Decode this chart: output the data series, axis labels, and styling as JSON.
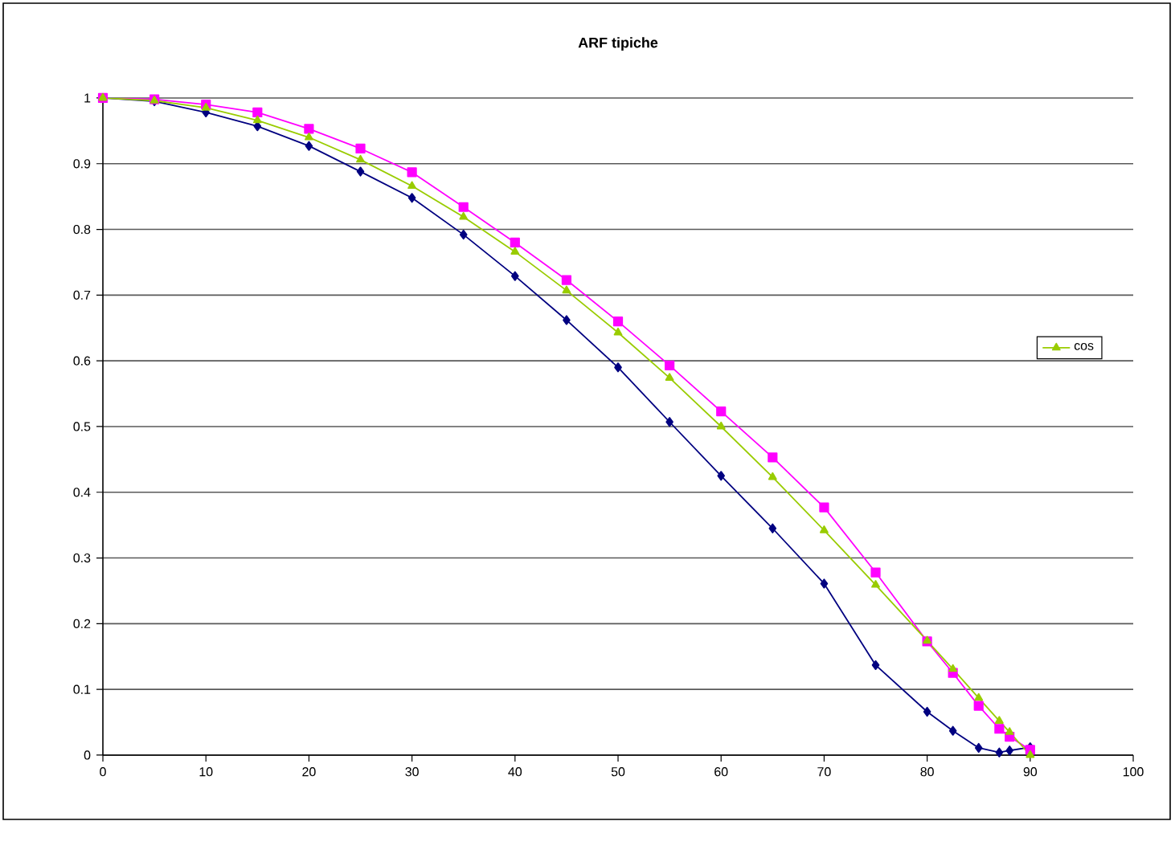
{
  "chart_data": {
    "type": "line",
    "title": "ARF tipiche",
    "xlim": [
      0,
      100
    ],
    "xticks": [
      0,
      10,
      20,
      30,
      40,
      50,
      60,
      70,
      80,
      90,
      100
    ],
    "ylim": [
      0,
      1
    ],
    "yticks": [
      0,
      0.1,
      0.2,
      0.3,
      0.4,
      0.5,
      0.6,
      0.7,
      0.8,
      0.9,
      1
    ],
    "grid": "y",
    "legend": "right",
    "x": [
      0,
      5,
      10,
      15,
      20,
      25,
      30,
      35,
      40,
      45,
      50,
      55,
      60,
      65,
      70,
      75,
      80,
      82.5,
      85,
      87,
      88,
      90
    ],
    "series": [
      {
        "color": "#000080",
        "marker": "diamond",
        "values": [
          1,
          0.995,
          0.978,
          0.957,
          0.927,
          0.888,
          0.848,
          0.792,
          0.729,
          0.662,
          0.59,
          0.507,
          0.425,
          0.345,
          0.261,
          0.137,
          0.066,
          0.037,
          0.011,
          0.004,
          0.007,
          0.012
        ]
      },
      {
        "color": "#ff00ff",
        "marker": "square",
        "values": [
          1,
          0.998,
          0.99,
          0.978,
          0.953,
          0.923,
          0.887,
          0.834,
          0.78,
          0.723,
          0.66,
          0.593,
          0.523,
          0.453,
          0.377,
          0.278,
          0.173,
          0.125,
          0.075,
          0.04,
          0.028,
          0.008
        ]
      },
      {
        "name": "cos",
        "color": "#99cc00",
        "marker": "triangle",
        "values": [
          1,
          0.996,
          0.985,
          0.966,
          0.94,
          0.906,
          0.866,
          0.819,
          0.766,
          0.707,
          0.643,
          0.574,
          0.5,
          0.423,
          0.342,
          0.259,
          0.174,
          0.131,
          0.087,
          0.052,
          0.035,
          0
        ]
      }
    ]
  }
}
